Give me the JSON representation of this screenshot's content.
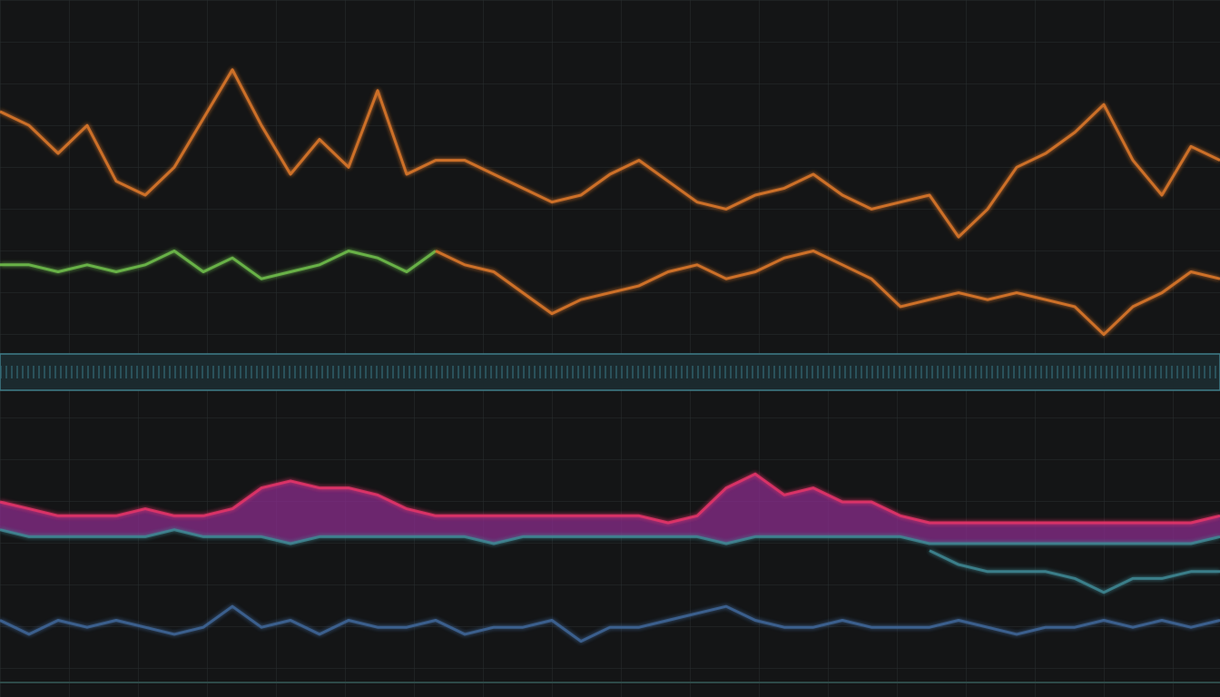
{
  "chart_data": {
    "type": "line",
    "ylim": [
      0,
      100
    ],
    "series": [
      {
        "color": "#e27a2c",
        "values": [
          84,
          82,
          78,
          82,
          74,
          72,
          76,
          83,
          90,
          82,
          75,
          80,
          76,
          87,
          75,
          77,
          77,
          75,
          73,
          71,
          72,
          75,
          77,
          74,
          71,
          70,
          72,
          73,
          75,
          72,
          70,
          71,
          72,
          66,
          70,
          76,
          78,
          81,
          85,
          77,
          72,
          79,
          77
        ]
      },
      {
        "color": "#72c24e",
        "values": [
          62,
          62,
          61,
          62,
          61,
          62,
          64,
          61,
          63,
          60,
          61,
          62,
          64,
          63,
          61,
          64,
          null,
          null,
          null,
          null,
          null,
          null,
          null,
          null,
          null,
          null,
          null,
          null,
          null,
          null,
          null,
          null,
          null,
          null,
          null,
          null,
          null,
          null,
          null,
          null,
          null,
          null,
          null
        ]
      },
      {
        "color": "#e27a2c",
        "values": [
          null,
          null,
          null,
          null,
          null,
          null,
          null,
          null,
          null,
          null,
          null,
          null,
          null,
          null,
          null,
          64,
          62,
          61,
          58,
          55,
          57,
          58,
          59,
          61,
          62,
          60,
          61,
          63,
          64,
          62,
          60,
          56,
          57,
          58,
          57,
          58,
          57,
          56,
          52,
          56,
          58,
          61,
          60
        ]
      },
      {
        "color": "#e8356a",
        "area": true,
        "values": [
          28,
          27,
          26,
          26,
          26,
          27,
          26,
          26,
          27,
          30,
          31,
          30,
          30,
          29,
          27,
          26,
          26,
          26,
          26,
          26,
          26,
          26,
          26,
          25,
          26,
          30,
          32,
          29,
          30,
          28,
          28,
          26,
          25,
          25,
          25,
          25,
          25,
          25,
          25,
          25,
          25,
          25,
          26
        ]
      },
      {
        "color": "#3f8a96",
        "values": [
          24,
          23,
          23,
          23,
          23,
          23,
          24,
          23,
          23,
          23,
          22,
          23,
          23,
          23,
          23,
          23,
          23,
          22,
          23,
          23,
          23,
          23,
          23,
          23,
          23,
          22,
          23,
          23,
          23,
          23,
          23,
          23,
          22,
          22,
          22,
          22,
          22,
          22,
          22,
          22,
          22,
          22,
          23
        ]
      },
      {
        "color": "#3f8a96",
        "values": [
          null,
          null,
          null,
          null,
          null,
          null,
          null,
          null,
          null,
          null,
          null,
          null,
          null,
          null,
          null,
          null,
          null,
          null,
          null,
          null,
          null,
          null,
          null,
          null,
          null,
          null,
          null,
          null,
          null,
          null,
          null,
          null,
          21,
          19,
          18,
          18,
          18,
          17,
          15,
          17,
          17,
          18,
          18
        ]
      },
      {
        "color": "#41689a",
        "values": [
          11,
          9,
          11,
          10,
          11,
          10,
          9,
          10,
          13,
          10,
          11,
          9,
          11,
          10,
          10,
          11,
          9,
          10,
          10,
          11,
          8,
          10,
          10,
          11,
          12,
          13,
          11,
          10,
          10,
          11,
          10,
          10,
          10,
          11,
          10,
          9,
          10,
          10,
          11,
          10,
          11,
          10,
          11
        ]
      }
    ]
  }
}
